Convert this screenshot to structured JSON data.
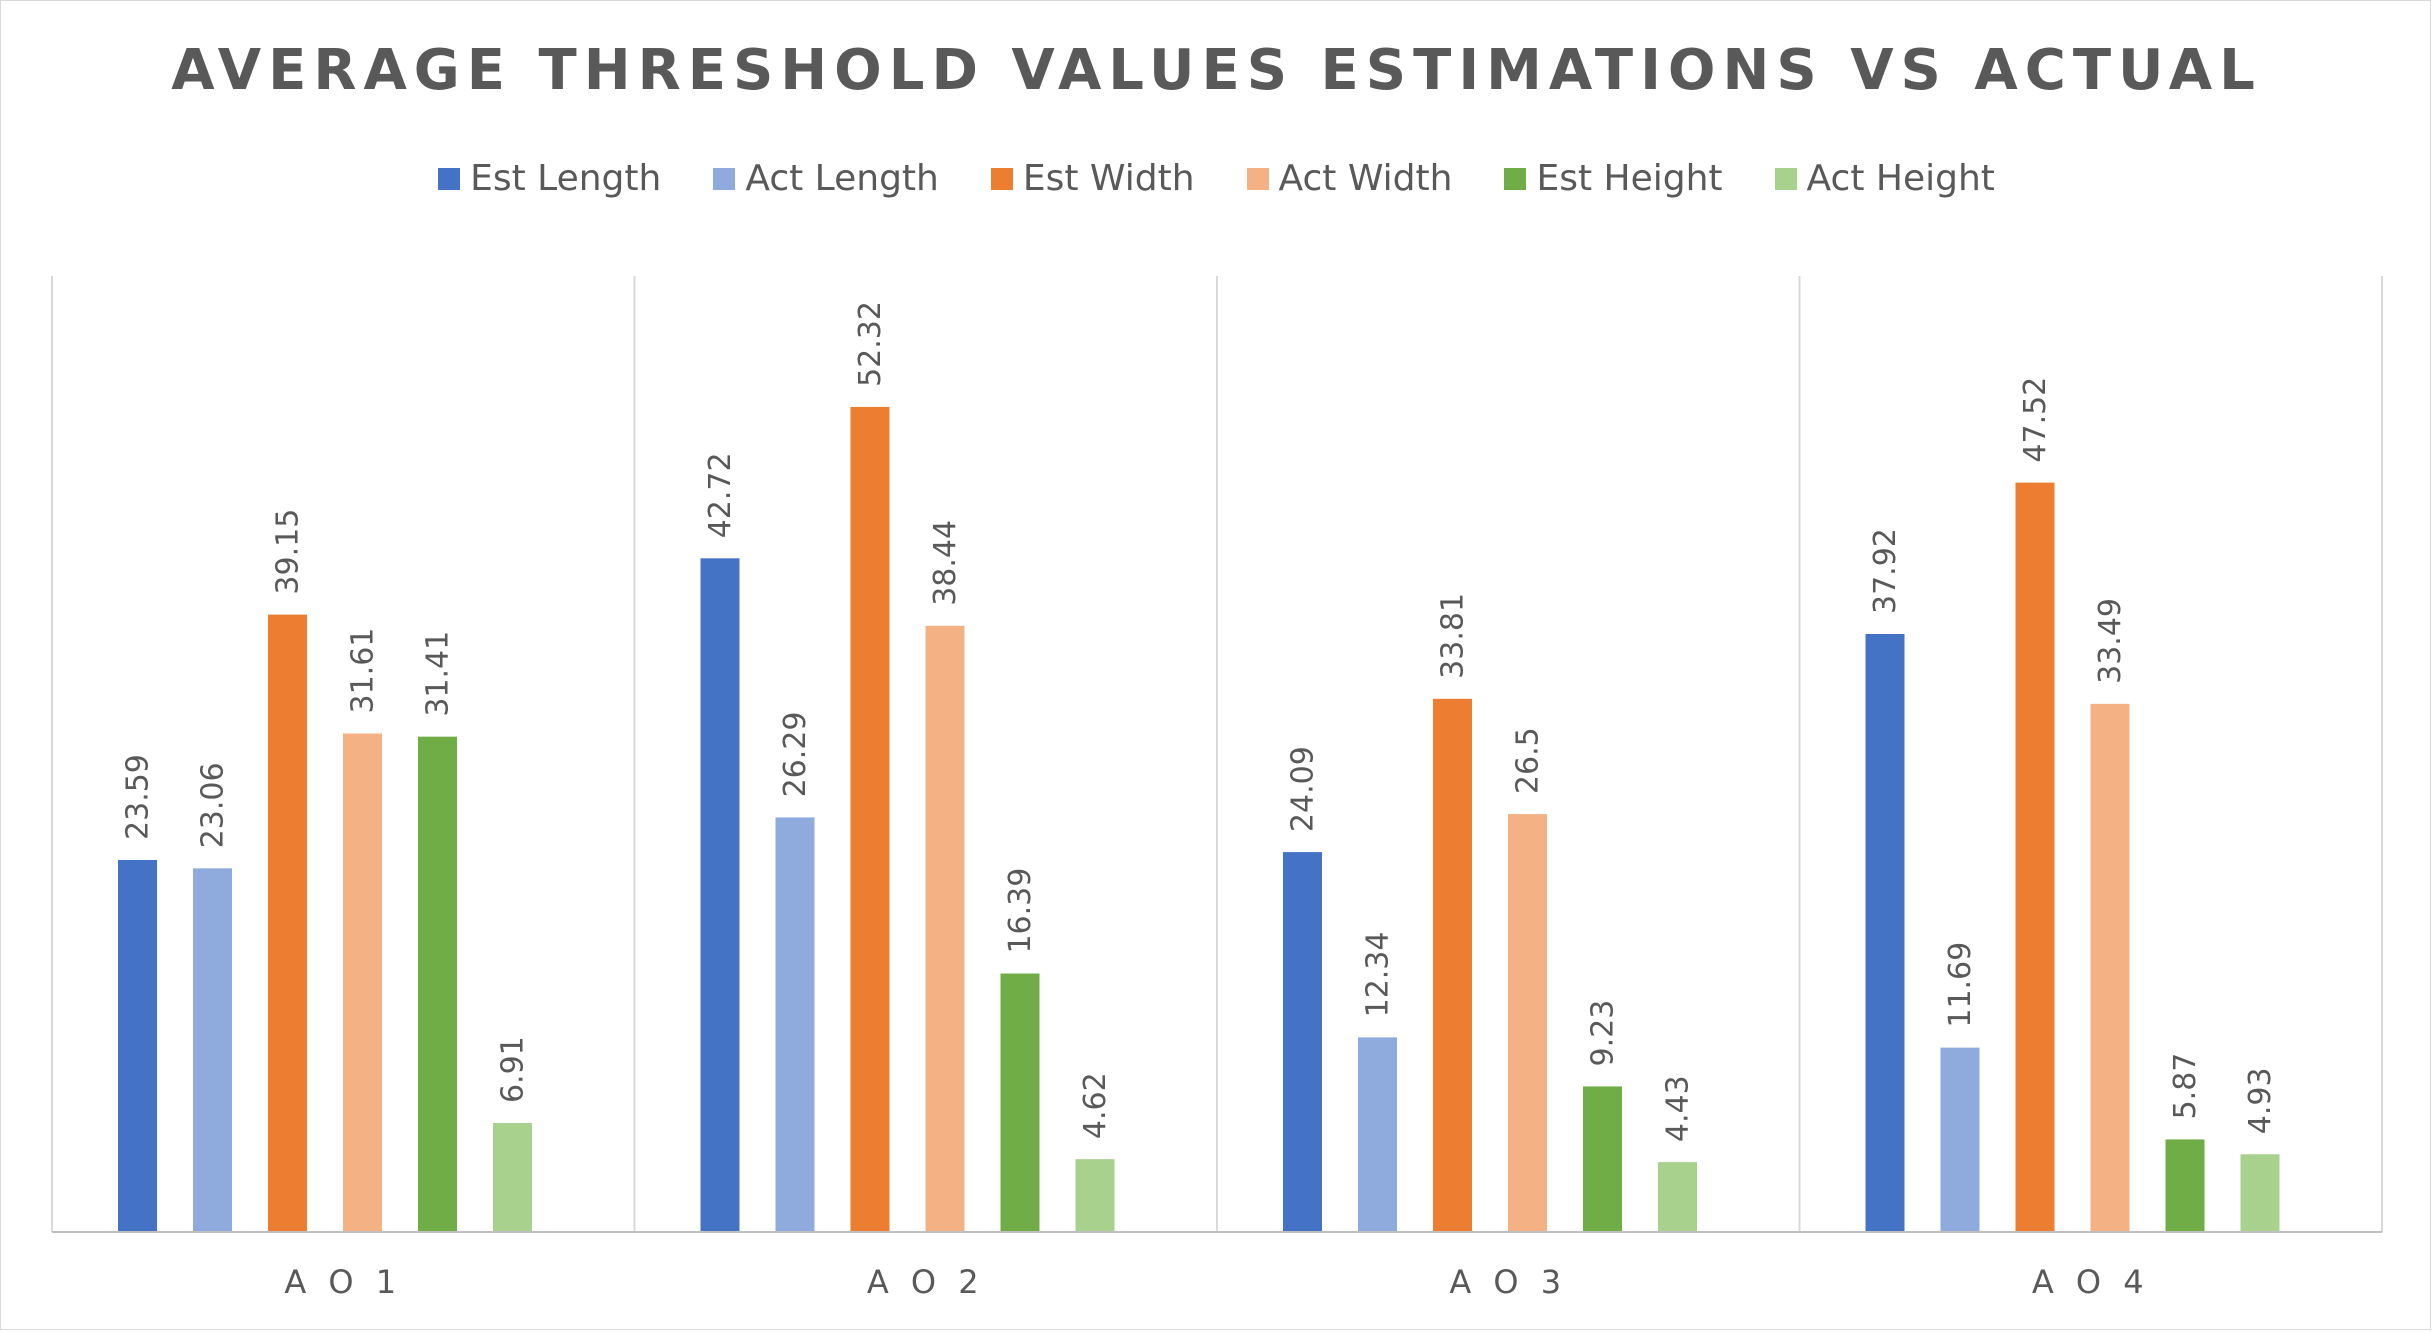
{
  "chart_data": {
    "type": "bar",
    "title": "AVERAGE THRESHOLD VALUES ESTIMATIONS VS ACTUAL",
    "xlabel": "",
    "ylabel": "",
    "ylim": [
      0,
      60
    ],
    "grid": "vertical category separators",
    "legend_position": "top",
    "categories": [
      "AO1",
      "AO2",
      "AO3",
      "AO4"
    ],
    "category_labels": [
      "A O 1",
      "A O 2",
      "A O 3",
      "A O 4"
    ],
    "series": [
      {
        "name": "Est Length",
        "color": "#4472C4",
        "values": [
          23.59,
          42.72,
          24.09,
          37.92
        ]
      },
      {
        "name": "Act Length",
        "color": "#8FAADC",
        "values": [
          23.06,
          26.29,
          12.34,
          11.69
        ]
      },
      {
        "name": "Est Width",
        "color": "#ED7D31",
        "values": [
          39.15,
          52.32,
          33.81,
          47.52
        ]
      },
      {
        "name": "Act Width",
        "color": "#F4B183",
        "values": [
          31.61,
          38.44,
          26.5,
          33.49
        ]
      },
      {
        "name": "Est Height",
        "color": "#70AD47",
        "values": [
          31.41,
          16.39,
          9.23,
          5.87
        ]
      },
      {
        "name": "Act Height",
        "color": "#A9D18E",
        "values": [
          6.91,
          4.62,
          4.43,
          4.93
        ]
      }
    ]
  }
}
